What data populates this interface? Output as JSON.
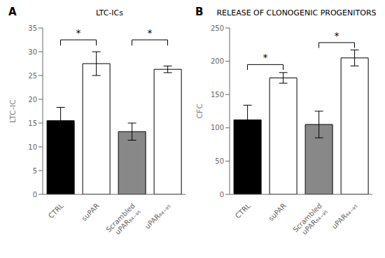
{
  "chart_data": [
    {
      "type": "bar",
      "panel_label": "A",
      "title": "LTC-ICs",
      "ylabel": "LTC-IC",
      "categories": [
        "CTRL",
        "suPAR",
        "Scrambled\nuPAR₈₄₋₉₅",
        "uPAR₈₄₋₉₅"
      ],
      "values": [
        15.5,
        27.5,
        13.2,
        26.3
      ],
      "errors": [
        2.8,
        2.5,
        1.8,
        0.7
      ],
      "colors": [
        "black",
        "white",
        "#888888",
        "white"
      ],
      "ylim": [
        0,
        35
      ],
      "yticks": [
        0,
        5,
        10,
        15,
        20,
        25,
        30,
        35
      ],
      "annotations": [
        {
          "text": "*",
          "from": "CTRL",
          "to": "suPAR",
          "y": 32.5,
          "drop": 1.2
        },
        {
          "text": "*",
          "from": "Scrambled\nuPAR₈₄₋₉₅",
          "to": "uPAR₈₄₋₉₅",
          "y": 32.5,
          "drop": 1.2
        }
      ]
    },
    {
      "type": "bar",
      "panel_label": "B",
      "title": "RELEASE OF CLONOGENIC PROGENITORS",
      "ylabel": "CFC",
      "categories": [
        "CTRL",
        "suPAR",
        "Scrambled\nuPAR₈₄₋₉₅",
        "uPAR₈₄₋₉₅"
      ],
      "values": [
        112,
        175,
        105,
        205
      ],
      "errors": [
        22,
        8,
        20,
        12
      ],
      "colors": [
        "black",
        "white",
        "#888888",
        "white"
      ],
      "ylim": [
        0,
        250
      ],
      "yticks": [
        0,
        50,
        100,
        150,
        200,
        250
      ],
      "annotations": [
        {
          "text": "*",
          "from": "CTRL",
          "to": "suPAR",
          "y": 195,
          "drop": 8
        },
        {
          "text": "*",
          "from": "Scrambled\nuPAR₈₄₋₉₅",
          "to": "uPAR₈₄₋₉₅",
          "y": 228,
          "drop": 8
        }
      ]
    }
  ]
}
